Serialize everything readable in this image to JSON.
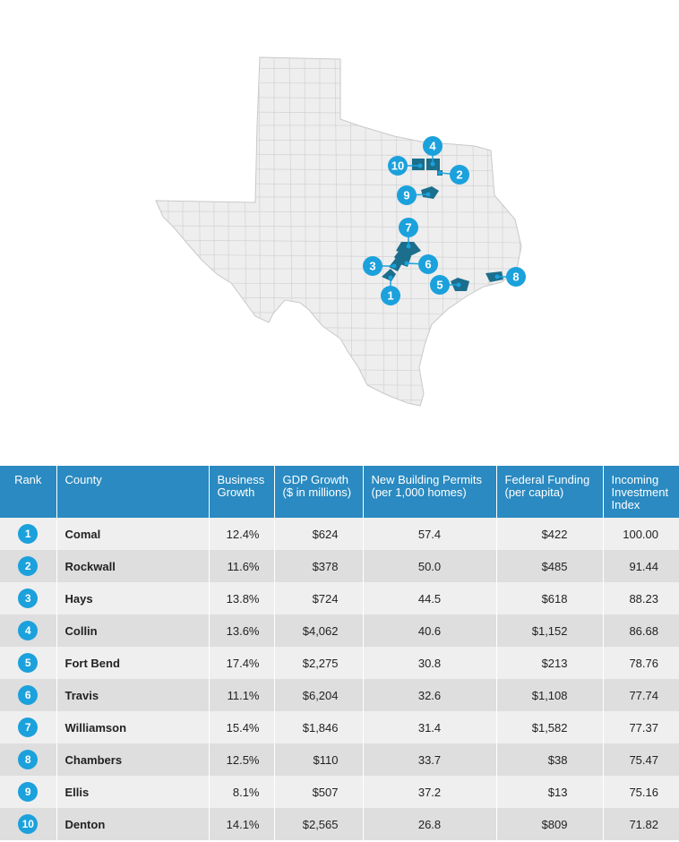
{
  "map": {
    "markers": [
      {
        "rank": "1",
        "county": "Comal"
      },
      {
        "rank": "2",
        "county": "Rockwall"
      },
      {
        "rank": "3",
        "county": "Hays"
      },
      {
        "rank": "4",
        "county": "Collin"
      },
      {
        "rank": "5",
        "county": "Fort Bend"
      },
      {
        "rank": "6",
        "county": "Travis"
      },
      {
        "rank": "7",
        "county": "Williamson"
      },
      {
        "rank": "8",
        "county": "Chambers"
      },
      {
        "rank": "9",
        "county": "Ellis"
      },
      {
        "rank": "10",
        "county": "Denton"
      }
    ]
  },
  "table": {
    "headers": {
      "rank": "Rank",
      "county": "County",
      "business_growth": "Business Growth",
      "gdp_growth": "GDP Growth ($ in millions)",
      "permits": "New Building Permits (per 1,000 homes)",
      "federal": "Federal Funding (per capita)",
      "index": "Incoming Investment Index"
    },
    "rows": [
      {
        "rank": "1",
        "county": "Comal",
        "business_growth": "12.4%",
        "gdp_growth": "$624",
        "permits": "57.4",
        "federal": "$422",
        "index": "100.00"
      },
      {
        "rank": "2",
        "county": "Rockwall",
        "business_growth": "11.6%",
        "gdp_growth": "$378",
        "permits": "50.0",
        "federal": "$485",
        "index": "91.44"
      },
      {
        "rank": "3",
        "county": "Hays",
        "business_growth": "13.8%",
        "gdp_growth": "$724",
        "permits": "44.5",
        "federal": "$618",
        "index": "88.23"
      },
      {
        "rank": "4",
        "county": "Collin",
        "business_growth": "13.6%",
        "gdp_growth": "$4,062",
        "permits": "40.6",
        "federal": "$1,152",
        "index": "86.68"
      },
      {
        "rank": "5",
        "county": "Fort Bend",
        "business_growth": "17.4%",
        "gdp_growth": "$2,275",
        "permits": "30.8",
        "federal": "$213",
        "index": "78.76"
      },
      {
        "rank": "6",
        "county": "Travis",
        "business_growth": "11.1%",
        "gdp_growth": "$6,204",
        "permits": "32.6",
        "federal": "$1,108",
        "index": "77.74"
      },
      {
        "rank": "7",
        "county": "Williamson",
        "business_growth": "15.4%",
        "gdp_growth": "$1,846",
        "permits": "31.4",
        "federal": "$1,582",
        "index": "77.37"
      },
      {
        "rank": "8",
        "county": "Chambers",
        "business_growth": "12.5%",
        "gdp_growth": "$110",
        "permits": "33.7",
        "federal": "$38",
        "index": "75.47"
      },
      {
        "rank": "9",
        "county": "Ellis",
        "business_growth": "8.1%",
        "gdp_growth": "$507",
        "permits": "37.2",
        "federal": "$13",
        "index": "75.16"
      },
      {
        "rank": "10",
        "county": "Denton",
        "business_growth": "14.1%",
        "gdp_growth": "$2,565",
        "permits": "26.8",
        "federal": "$809",
        "index": "71.82"
      }
    ]
  },
  "colors": {
    "header_bg": "#2a8ac1",
    "badge": "#1ba1dc",
    "county_fill": "#1b6e8c",
    "state_fill": "#eeeeee",
    "row_odd": "#efefef",
    "row_even": "#dedede"
  }
}
